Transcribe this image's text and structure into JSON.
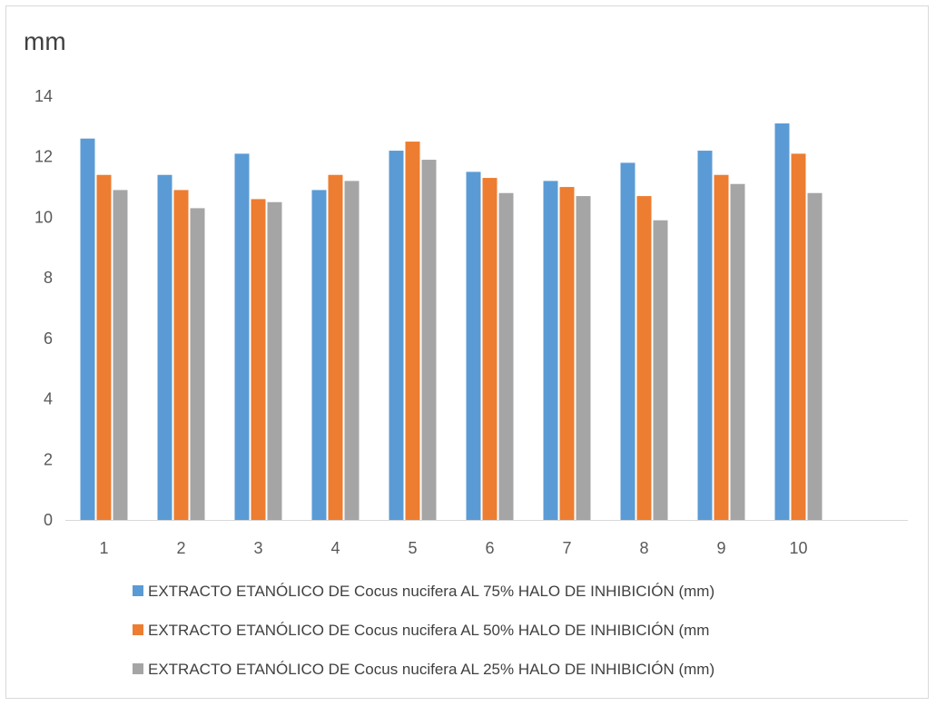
{
  "chart_data": {
    "type": "bar",
    "ylabel": "mm",
    "ylim": [
      0,
      14
    ],
    "yticks": [
      0,
      2,
      4,
      6,
      8,
      10,
      12,
      14
    ],
    "grid": false,
    "legend_position": "bottom",
    "categories": [
      "1",
      "2",
      "3",
      "4",
      "5",
      "6",
      "7",
      "8",
      "9",
      "10"
    ],
    "series": [
      {
        "name": "EXTRACTO ETANÓLICO DE Cocus nucifera  AL 75% HALO DE INHIBICIÓN (mm)",
        "color": "#5b9bd5",
        "values": [
          12.6,
          11.4,
          12.1,
          10.9,
          12.2,
          11.5,
          11.2,
          11.8,
          12.2,
          13.1
        ]
      },
      {
        "name": "EXTRACTO ETANÓLICO DE Cocus nucifera  AL 50% HALO DE INHIBICIÓN (mm",
        "color": "#ed7d31",
        "values": [
          11.4,
          10.9,
          10.6,
          11.4,
          12.5,
          11.3,
          11.0,
          10.7,
          11.4,
          12.1
        ]
      },
      {
        "name": "EXTRACTO ETANÓLICO DE Cocus nucifera  AL 25% HALO DE INHIBICIÓN (mm)",
        "color": "#a5a5a5",
        "values": [
          10.9,
          10.3,
          10.5,
          11.2,
          11.9,
          10.8,
          10.7,
          9.9,
          11.1,
          10.8
        ]
      }
    ]
  }
}
